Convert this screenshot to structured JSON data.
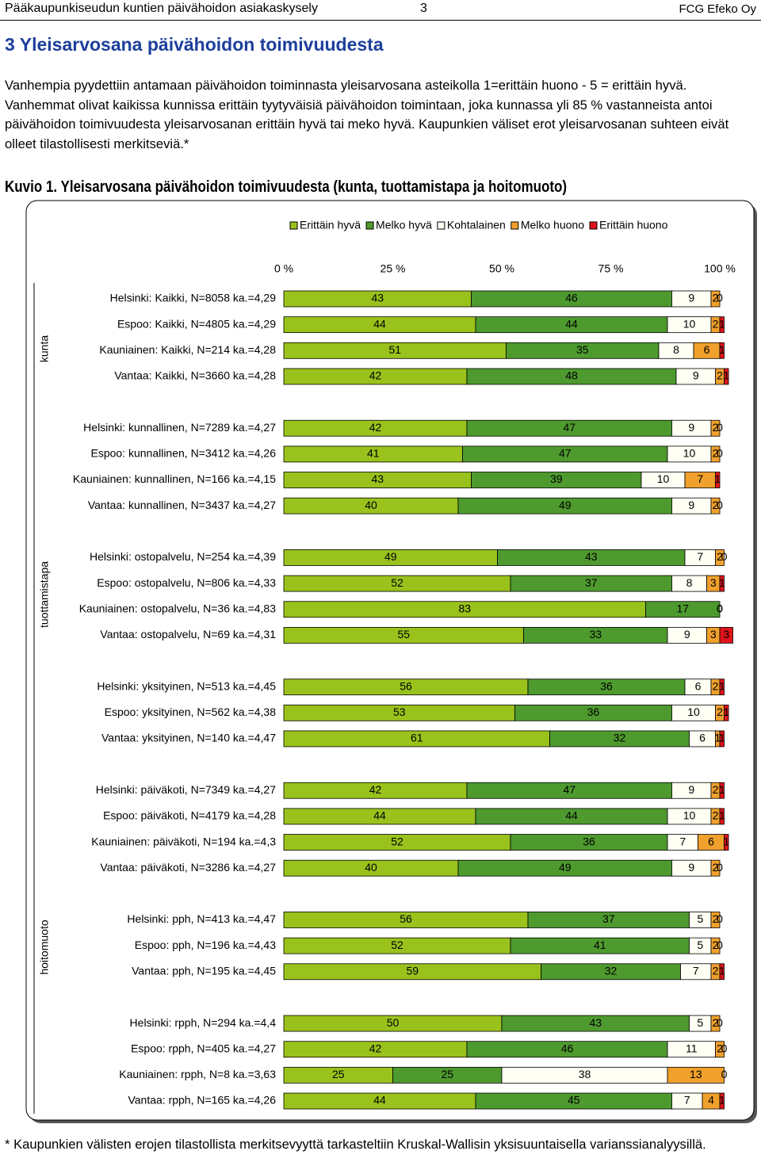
{
  "header": {
    "left": "Pääkaupunkiseudun kuntien päivähoidon asiakaskysely",
    "page": "3",
    "right": "FCG Efeko Oy"
  },
  "heading": "3 Yleisarvosana päivähoidon toimivuudesta",
  "paragraph": "Vanhempia pyydettiin antamaan päivähoidon toiminnasta yleisarvosana asteikolla 1=erittäin huono - 5 = erittäin hyvä. Vanhemmat olivat kaikissa kunnissa erittäin tyytyväisiä päivähoidon toimintaan, joka kunnassa yli 85 % vastanneista antoi päivähoidon toimivuudesta yleisarvosanan erittäin hyvä tai meko hyvä. Kaupunkien väliset erot yleisarvosanan suhteen eivät olleet tilastollisesti merkitseviä.*",
  "chart_data": {
    "type": "stacked-bar-horizontal",
    "title": "Kuvio 1. Yleisarvosana päivähoidon toimivuudesta (kunta, tuottamistapa ja hoitomuoto)",
    "group_labels": [
      "kunta",
      "tuottamistapa",
      "hoitomuoto"
    ],
    "categories": [
      "Helsinki: Kaikki, N=8058 ka.=4,29",
      "Espoo: Kaikki, N=4805 ka.=4,29",
      "Kauniainen: Kaikki, N=214 ka.=4,28",
      "Vantaa: Kaikki, N=3660 ka.=4,28",
      null,
      "Helsinki: kunnallinen, N=7289 ka.=4,27",
      "Espoo: kunnallinen, N=3412 ka.=4,26",
      "Kauniainen: kunnallinen, N=166 ka.=4,15",
      "Vantaa: kunnallinen, N=3437 ka.=4,27",
      null,
      "Helsinki: ostopalvelu, N=254 ka.=4,39",
      "Espoo: ostopalvelu, N=806 ka.=4,33",
      "Kauniainen: ostopalvelu, N=36 ka.=4,83",
      "Vantaa: ostopalvelu, N=69 ka.=4,31",
      null,
      "Helsinki: yksityinen, N=513 ka.=4,45",
      "Espoo: yksityinen, N=562 ka.=4,38",
      "Vantaa: yksityinen, N=140 ka.=4,47",
      null,
      "Helsinki: päiväkoti, N=7349 ka.=4,27",
      "Espoo: päiväkoti, N=4179 ka.=4,28",
      "Kauniainen: päiväkoti, N=194 ka.=4,3",
      "Vantaa: päiväkoti, N=3286 ka.=4,27",
      null,
      "Helsinki: pph, N=413 ka.=4,47",
      "Espoo: pph, N=196 ka.=4,43",
      "Vantaa: pph, N=195 ka.=4,45",
      null,
      "Helsinki: rpph, N=294 ka.=4,4",
      "Espoo: rpph, N=405 ka.=4,27",
      "Kauniainen: rpph, N=8 ka.=3,63",
      "Vantaa: rpph, N=165 ka.=4,26"
    ],
    "series": [
      {
        "name": "Erittäin hyvä",
        "color": "#99c21c",
        "values": [
          43,
          44,
          51,
          42,
          null,
          42,
          41,
          43,
          40,
          null,
          49,
          52,
          83,
          55,
          null,
          56,
          53,
          61,
          null,
          42,
          44,
          52,
          40,
          null,
          56,
          52,
          59,
          null,
          50,
          42,
          25,
          44
        ]
      },
      {
        "name": "Melko hyvä",
        "color": "#4e9a2e",
        "values": [
          46,
          44,
          35,
          48,
          null,
          47,
          47,
          39,
          49,
          null,
          43,
          37,
          17,
          33,
          null,
          36,
          36,
          32,
          null,
          47,
          44,
          36,
          49,
          null,
          37,
          41,
          32,
          null,
          43,
          46,
          25,
          45
        ]
      },
      {
        "name": "Kohtalainen",
        "color": "#fffff4",
        "values": [
          9,
          10,
          8,
          9,
          null,
          9,
          10,
          10,
          9,
          null,
          7,
          8,
          0,
          9,
          null,
          6,
          10,
          6,
          null,
          9,
          10,
          7,
          9,
          null,
          5,
          5,
          7,
          null,
          5,
          11,
          38,
          7
        ]
      },
      {
        "name": "Melko huono",
        "color": "#f0a02c",
        "values": [
          2,
          2,
          6,
          2,
          null,
          2,
          2,
          7,
          2,
          null,
          2,
          3,
          0,
          3,
          null,
          2,
          2,
          1,
          null,
          2,
          2,
          6,
          2,
          null,
          2,
          2,
          2,
          null,
          2,
          2,
          13,
          4
        ]
      },
      {
        "name": "Erittäin huono",
        "color": "#e0141a",
        "values": [
          0,
          1,
          1,
          1,
          null,
          0,
          0,
          1,
          0,
          null,
          0,
          1,
          0,
          3,
          null,
          1,
          1,
          1,
          null,
          1,
          1,
          1,
          0,
          null,
          0,
          0,
          1,
          null,
          0,
          0,
          0,
          1
        ]
      }
    ],
    "xlim": [
      0,
      100
    ],
    "xticks": [
      {
        "value": 0,
        "label": "0 %"
      },
      {
        "value": 25,
        "label": "25 %"
      },
      {
        "value": 50,
        "label": "50 %"
      },
      {
        "value": 75,
        "label": "75 %"
      },
      {
        "value": 100,
        "label": "100 %"
      }
    ],
    "legend": "top"
  },
  "footnote": "* Kaupunkien välisten erojen tilastollista merkitsevyyttä tarkasteltiin Kruskal-Wallisin yksisuuntaisella varianssianalyysillä."
}
